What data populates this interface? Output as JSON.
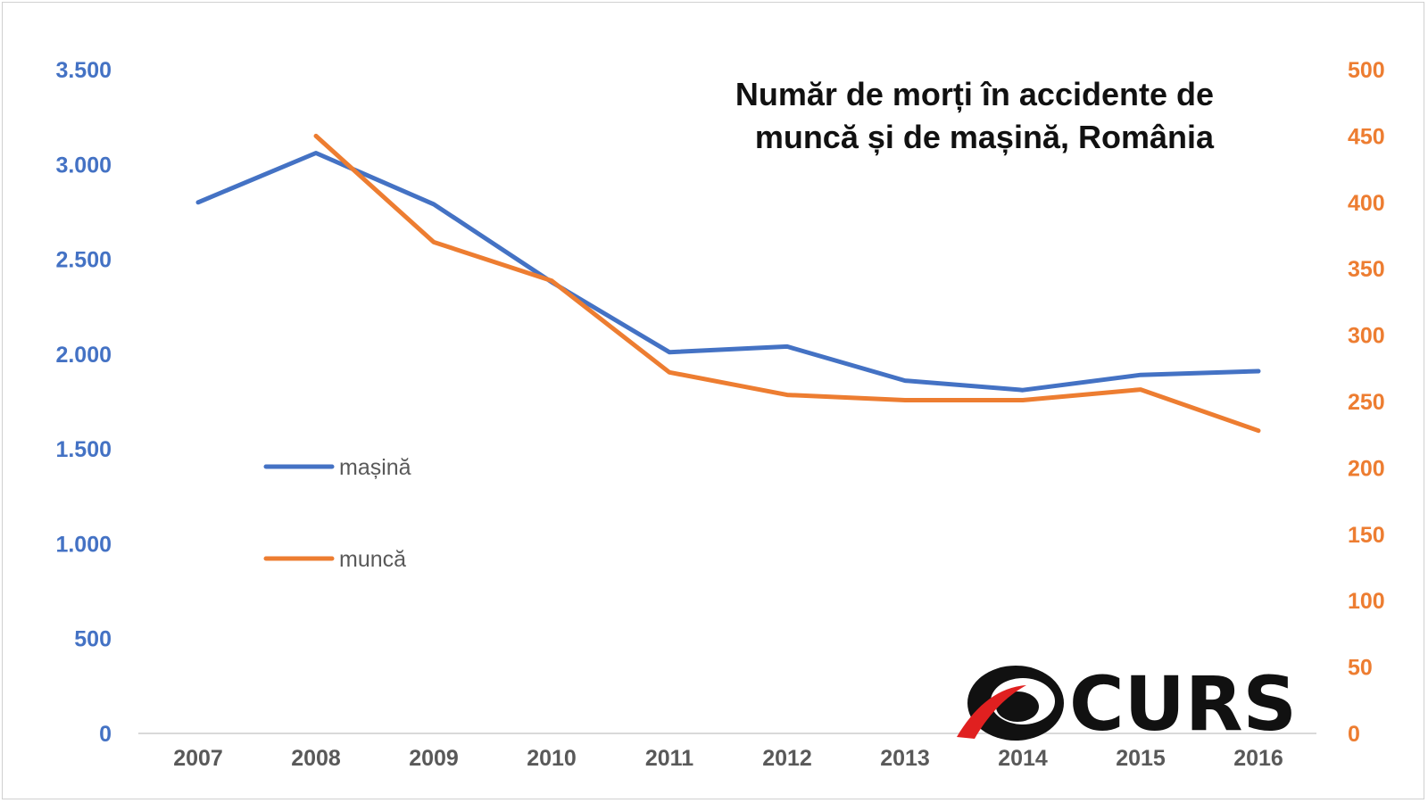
{
  "chart_data": {
    "type": "line",
    "title_lines": [
      "Număr de morți în accidente de",
      "muncă și de mașină, România"
    ],
    "categories": [
      "2007",
      "2008",
      "2009",
      "2010",
      "2011",
      "2012",
      "2013",
      "2014",
      "2015",
      "2016"
    ],
    "series": [
      {
        "name": "mașină",
        "axis": "left",
        "color": "#4472c4",
        "values": [
          2800,
          3060,
          2790,
          2380,
          2010,
          2040,
          1860,
          1810,
          1890,
          1910
        ]
      },
      {
        "name": "muncă",
        "axis": "right",
        "color": "#ed7d31",
        "values": [
          null,
          450,
          370,
          341,
          272,
          255,
          251,
          251,
          259,
          228
        ]
      }
    ],
    "y_left": {
      "min": 0,
      "max": 3500,
      "ticks": [
        0,
        500,
        1000,
        1500,
        2000,
        2500,
        3000,
        3500
      ],
      "tick_labels": [
        "0",
        "500",
        "1.000",
        "1.500",
        "2.000",
        "2.500",
        "3.000",
        "3.500"
      ]
    },
    "y_right": {
      "min": 0,
      "max": 500,
      "ticks": [
        0,
        50,
        100,
        150,
        200,
        250,
        300,
        350,
        400,
        450,
        500
      ],
      "tick_labels": [
        "0",
        "50",
        "100",
        "150",
        "200",
        "250",
        "300",
        "350",
        "400",
        "450",
        "500"
      ]
    },
    "grid": false,
    "legend_position": "left",
    "logo_text": "CURS"
  }
}
